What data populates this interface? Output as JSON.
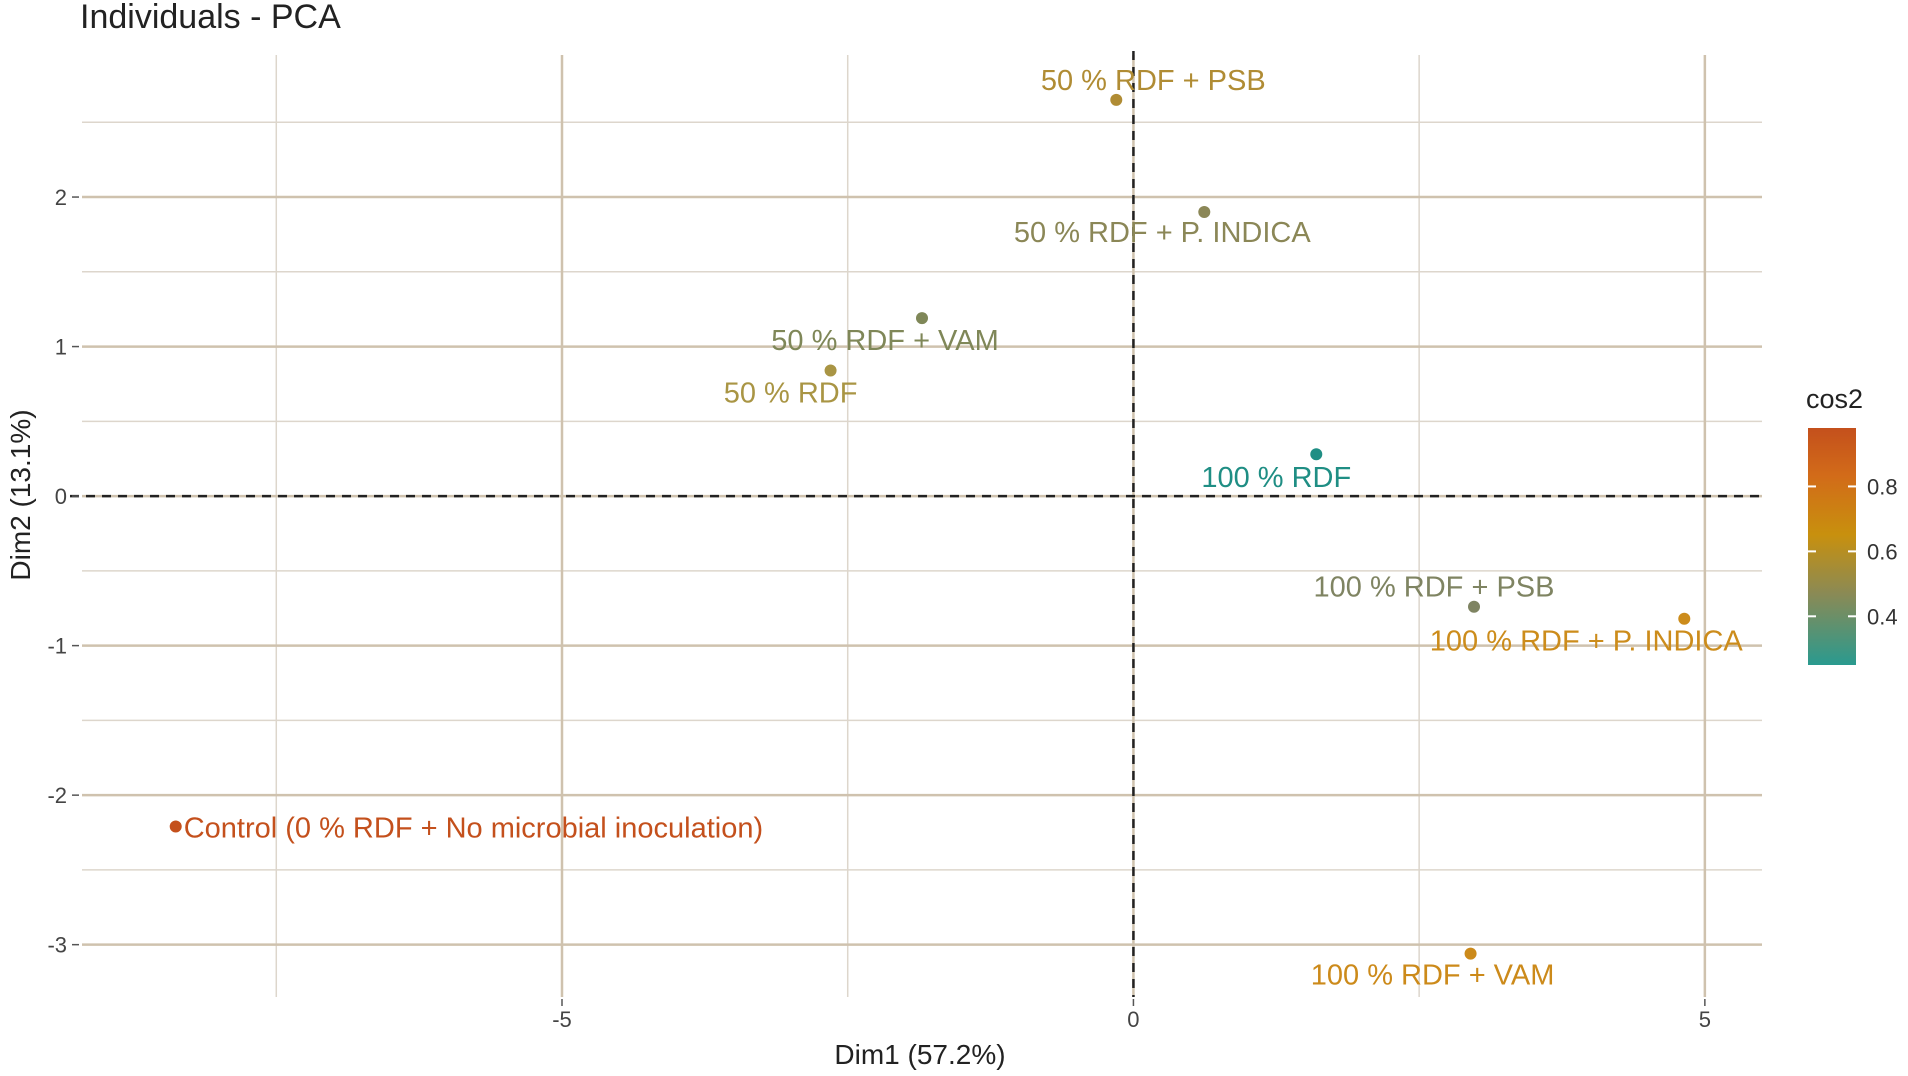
{
  "chart_data": {
    "type": "scatter",
    "title": "Individuals - PCA",
    "xlabel": "Dim1 (57.2%)",
    "ylabel": "Dim2 (13.1%)",
    "xlim": [
      -9.2,
      5.5
    ],
    "ylim": [
      -3.35,
      2.95
    ],
    "x_ticks": [
      -5,
      0,
      5
    ],
    "y_ticks": [
      -3,
      -2,
      -1,
      0,
      1,
      2
    ],
    "grid": true,
    "reference_lines": {
      "x": 0,
      "y": 0
    },
    "legend": {
      "title": "cos2",
      "placement": "right",
      "range": [
        0.25,
        0.98
      ],
      "ticks": [
        0.4,
        0.6,
        0.8
      ],
      "colors": [
        "#2a9a8f",
        "#8a8a55",
        "#c8900e",
        "#d26b19",
        "#c4501c"
      ]
    },
    "points": [
      {
        "label": "50 % RDF + PSB",
        "x": -0.15,
        "y": 2.65,
        "color": "#b08c34"
      },
      {
        "label": "50 % RDF + P. INDICA",
        "x": 0.62,
        "y": 1.9,
        "color": "#8b8757"
      },
      {
        "label": "50 % RDF + VAM",
        "x": -1.85,
        "y": 1.19,
        "color": "#7f8758"
      },
      {
        "label": "50 % RDF",
        "x": -2.65,
        "y": 0.84,
        "color": "#a99544"
      },
      {
        "label": "100 % RDF",
        "x": 1.6,
        "y": 0.28,
        "color": "#1f8e84"
      },
      {
        "label": "100 % RDF + PSB",
        "x": 2.98,
        "y": -0.74,
        "color": "#7f8462"
      },
      {
        "label": "100 % RDF + P. INDICA",
        "x": 4.82,
        "y": -0.82,
        "color": "#cc8c1b"
      },
      {
        "label": "Control (0 % RDF + No  microbial inoculation)",
        "x": -8.38,
        "y": -2.21,
        "color": "#c4501c"
      },
      {
        "label": "100 % RDF + VAM",
        "x": 2.95,
        "y": -3.06,
        "color": "#cc8a1a"
      }
    ]
  }
}
